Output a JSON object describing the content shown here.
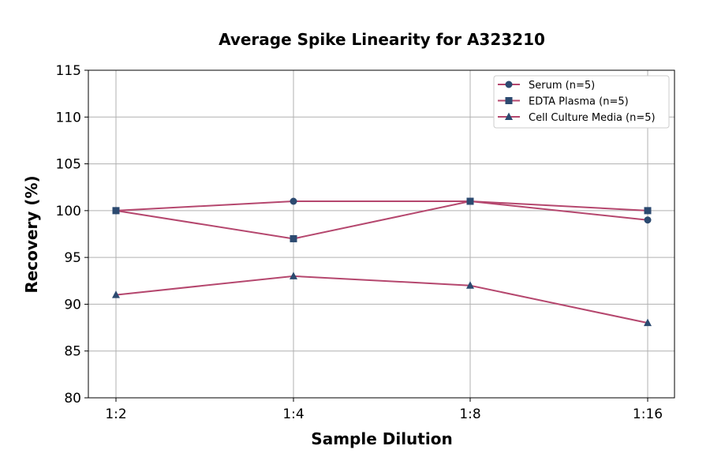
{
  "chart_data": {
    "type": "line",
    "title": "Average Spike Linearity for A323210",
    "xlabel": "Sample Dilution",
    "ylabel": "Recovery (%)",
    "categories": [
      "1:2",
      "1:4",
      "1:8",
      "1:16"
    ],
    "ylim": [
      80,
      115
    ],
    "yticks": [
      80,
      85,
      90,
      95,
      100,
      105,
      110,
      115
    ],
    "grid": true,
    "legend_position": "top-right",
    "line_color": "#b5476e",
    "marker_color": "#2c4a70",
    "series": [
      {
        "name": "Serum (n=5)",
        "marker": "circle",
        "values": [
          100,
          101,
          101,
          99
        ]
      },
      {
        "name": "EDTA Plasma (n=5)",
        "marker": "square",
        "values": [
          100,
          97,
          101,
          100
        ]
      },
      {
        "name": "Cell Culture Media (n=5)",
        "marker": "triangle",
        "values": [
          91,
          93,
          92,
          88
        ]
      }
    ]
  }
}
